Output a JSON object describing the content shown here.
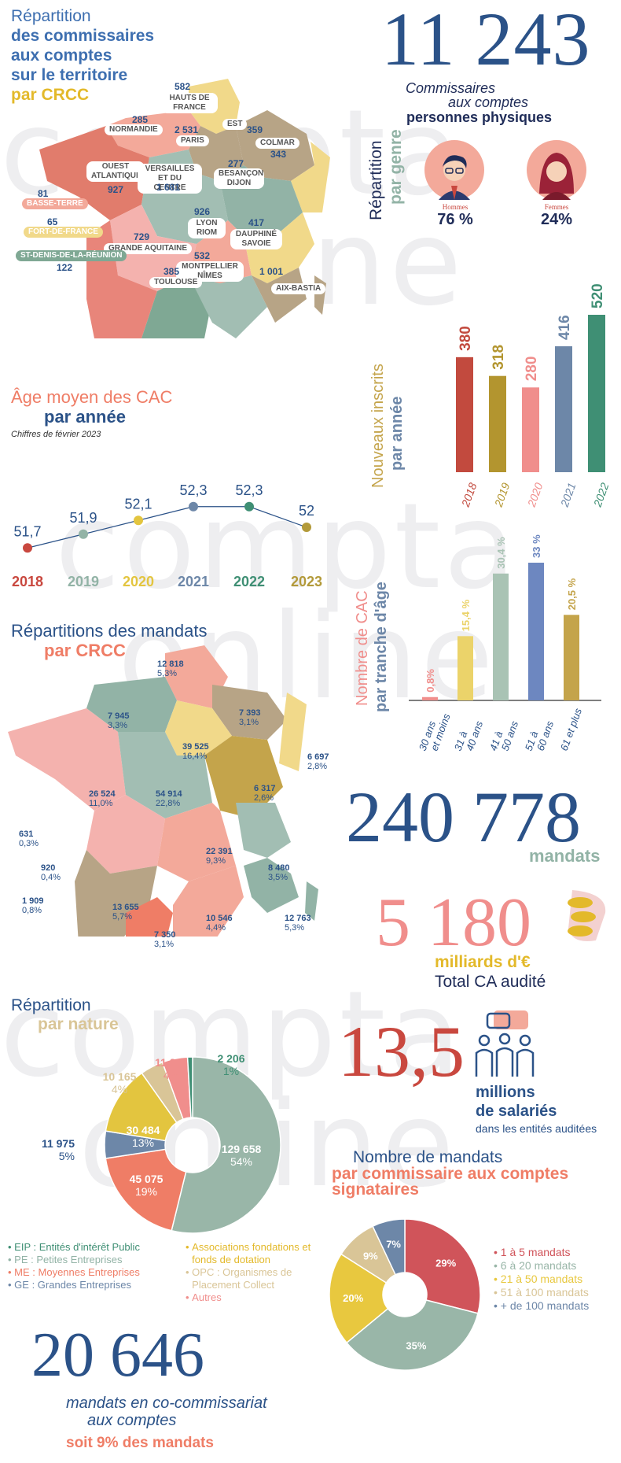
{
  "watermark": [
    "compta",
    "online"
  ],
  "header": {
    "line1": "Répartition",
    "line2": "des commissaires",
    "line3": "aux comptes",
    "line4": "sur le territoire",
    "line5": "par CRCC"
  },
  "total_cac": {
    "value": "11 243",
    "line1": "Commissaires",
    "line2": "aux comptes",
    "line3": "personnes physiques"
  },
  "map1_regions": [
    {
      "name": "HAUTS DE FRANCE",
      "value": "582"
    },
    {
      "name": "NORMANDIE",
      "value": "285"
    },
    {
      "name": "PARIS",
      "value": "2 531"
    },
    {
      "name": "EST",
      "value": "359"
    },
    {
      "name": "COLMAR",
      "value": "343"
    },
    {
      "name": "OUEST ATLANTIQUE",
      "value": "927"
    },
    {
      "name": "VERSAILLES ET DU CENTRE",
      "value": "1 681"
    },
    {
      "name": "BESANÇON DIJON",
      "value": "277"
    },
    {
      "name": "BASSE-TERRE",
      "value": "81"
    },
    {
      "name": "FORT-DE-FRANCE",
      "value": "65"
    },
    {
      "name": "LYON RIOM",
      "value": "926"
    },
    {
      "name": "GRANDE AQUITAINE",
      "value": "729"
    },
    {
      "name": "DAUPHINÉ SAVOIE",
      "value": "417"
    },
    {
      "name": "ST-DENIS-DE-LA-RÉUNION",
      "value": "122"
    },
    {
      "name": "MONTPELLIER NÎMES",
      "value": "532"
    },
    {
      "name": "TOULOUSE",
      "value": "385"
    },
    {
      "name": "AIX-BASTIA",
      "value": "1 001"
    }
  ],
  "genre": {
    "title1": "Répartition",
    "title2": "par genre",
    "hommes_label": "Hommes",
    "hommes_value": "76 %",
    "femmes_label": "Femmes",
    "femmes_value": "24%"
  },
  "inscrits_chart": {
    "title1": "Nouveaux inscrits",
    "title2": "par année"
  },
  "age_chart": {
    "title1": "Âge moyen des CAC",
    "title2": "par année",
    "note": "Chiffres de février 2023"
  },
  "age_tranche_chart": {
    "title1": "Nombre de CAC",
    "title2": "par tranche d'âge"
  },
  "mandats_map": {
    "title1": "Répartitions des mandats",
    "title2": "par CRCC",
    "regions": [
      {
        "value": "12 818",
        "pct": "5,3%"
      },
      {
        "value": "7 945",
        "pct": "3,3%"
      },
      {
        "value": "7 393",
        "pct": "3,1%"
      },
      {
        "value": "39 525",
        "pct": "16,4%"
      },
      {
        "value": "6 697",
        "pct": "2,8%"
      },
      {
        "value": "26 524",
        "pct": "11,0%"
      },
      {
        "value": "54 914",
        "pct": "22,8%"
      },
      {
        "value": "6 317",
        "pct": "2,6%"
      },
      {
        "value": "631",
        "pct": "0,3%"
      },
      {
        "value": "920",
        "pct": "0,4%"
      },
      {
        "value": "1 909",
        "pct": "0,8%"
      },
      {
        "value": "22 391",
        "pct": "9,3%"
      },
      {
        "value": "8 480",
        "pct": "3,5%"
      },
      {
        "value": "13 655",
        "pct": "5,7%"
      },
      {
        "value": "10 546",
        "pct": "4,4%"
      },
      {
        "value": "12 763",
        "pct": "5,3%"
      },
      {
        "value": "7 350",
        "pct": "3,1%"
      }
    ]
  },
  "total_mandats": {
    "value": "240 778",
    "label": "mandats"
  },
  "ca_audite": {
    "value": "5 180",
    "line1": "milliards d'€",
    "line2": "Total CA audité"
  },
  "salaries": {
    "value": "13,5",
    "line1": "millions",
    "line2": "de salariés",
    "line3": "dans les entités auditées"
  },
  "nature_chart": {
    "title1": "Répartition",
    "title2": "par nature",
    "legend_left": [
      "EIP : Entités d'intérêt Public",
      "PE : Petites Entreprises",
      "ME : Moyennes Entreprises",
      "GE : Grandes Entreprises"
    ],
    "legend_right": [
      "Associations fondations et fonds de dotation",
      "OPC : Organismes de Placement Collect",
      "Autres"
    ]
  },
  "signataires_chart": {
    "title1": "Nombre de mandats",
    "title2": "par commissaire aux comptes",
    "title3": "signataires"
  },
  "cocommissariat": {
    "value": "20 646",
    "line1": "mandats en co-commissariat",
    "line2": "aux comptes",
    "line3": "soit 9% des mandats"
  },
  "colors": {
    "blue": "#2b5288",
    "gold": "#e3b92a",
    "salmon": "#ef7d66",
    "pink": "#f08e8c",
    "sage": "#92b3a6",
    "slate": "#6d87a8",
    "green": "#3f8f74",
    "olive": "#b39a3a",
    "red": "#c9483f"
  },
  "chart_data": [
    {
      "type": "bar",
      "title": "Nouveaux inscrits par année",
      "categories": [
        "2018",
        "2019",
        "2020",
        "2021",
        "2022"
      ],
      "values": [
        380,
        318,
        280,
        416,
        520
      ],
      "colors": [
        "#c24a3e",
        "#b3952f",
        "#f08e8c",
        "#6d87a8",
        "#3f8f74"
      ]
    },
    {
      "type": "line",
      "title": "Âge moyen des CAC par année",
      "categories": [
        "2018",
        "2019",
        "2020",
        "2021",
        "2022",
        "2023"
      ],
      "values": [
        51.7,
        51.9,
        52.1,
        52.3,
        52.3,
        52
      ],
      "labels": [
        "51,7",
        "51,9",
        "52,1",
        "52,3",
        "52,3",
        "52"
      ],
      "colors": [
        "#c9483f",
        "#92b3a6",
        "#e3c53f",
        "#6d87a8",
        "#3f8f74",
        "#b39a3a"
      ]
    },
    {
      "type": "bar",
      "title": "Nombre de CAC par tranche d'âge",
      "categories": [
        "30 ans et moins",
        "31 à 40 ans",
        "41 à 50 ans",
        "51 à 60 ans",
        "61 et plus"
      ],
      "category_lines": [
        [
          "30 ans",
          "et moins"
        ],
        [
          "31 à",
          "40 ans"
        ],
        [
          "41 à",
          "50 ans"
        ],
        [
          "51 à",
          "60 ans"
        ],
        [
          "61 et plus"
        ]
      ],
      "values": [
        0.8,
        15.4,
        30.4,
        33,
        20.5
      ],
      "labels": [
        "0,8%",
        "15,4 %",
        "30,4 %",
        "33 %",
        "20,5 %"
      ],
      "colors": [
        "#f08e8c",
        "#ebd36a",
        "#a9c3b4",
        "#6d87c0",
        "#c4a44b"
      ]
    },
    {
      "type": "pie",
      "title": "Répartition par nature",
      "slices": [
        {
          "label": "129 658",
          "pct": "54%",
          "value": 129658,
          "color": "#99b6a8"
        },
        {
          "label": "45 075",
          "pct": "19%",
          "value": 45075,
          "color": "#ef7d66"
        },
        {
          "label": "11 975",
          "pct": "5%",
          "value": 11975,
          "color": "#6d87a8"
        },
        {
          "label": "30 484",
          "pct": "13%",
          "value": 30484,
          "color": "#e3c53f"
        },
        {
          "label": "10 165",
          "pct": "4%",
          "value": 10165,
          "color": "#d9c597"
        },
        {
          "label": "11 215",
          "pct": "4%",
          "value": 11215,
          "color": "#f08e8c"
        },
        {
          "label": "2 206",
          "pct": "1%",
          "value": 2206,
          "color": "#3f8f74"
        }
      ]
    },
    {
      "type": "pie",
      "title": "Nombre de mandats par commissaire aux comptes signataires",
      "slices": [
        {
          "label": "29%",
          "value": 29,
          "name": "1 à 5 mandats",
          "color": "#d0545a"
        },
        {
          "label": "35%",
          "value": 35,
          "name": "6 à 20 mandats",
          "color": "#99b6a8"
        },
        {
          "label": "20%",
          "value": 20,
          "name": "21 à 50 mandats",
          "color": "#e8c83f"
        },
        {
          "label": "9%",
          "value": 9,
          "name": "51 à 100 mandats",
          "color": "#d9c597"
        },
        {
          "label": "7%",
          "value": 7,
          "name": "+ de 100 mandats",
          "color": "#6d87a8"
        }
      ]
    }
  ]
}
